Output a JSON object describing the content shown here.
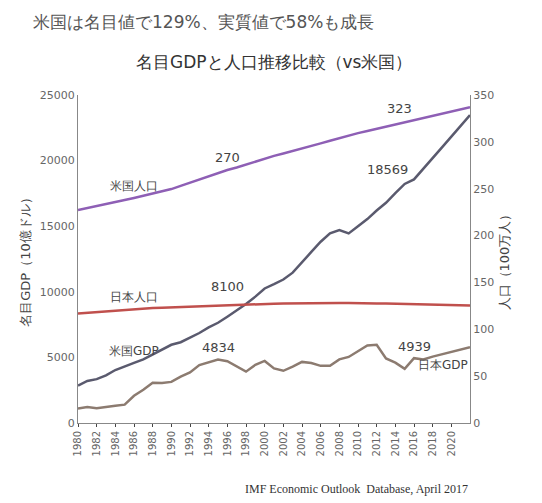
{
  "chart_data": {
    "type": "line",
    "title": "米国は名目値で129%、実質値で58%も成長",
    "subtitle": "名目GDPと人口推移比較（vs米国）",
    "source": "IMF Economic Outlook  Database, April 2017",
    "ylabel": "名目GDP（10億ドル）",
    "y2label": "人口（100万人）",
    "x": [
      1980,
      1981,
      1982,
      1983,
      1984,
      1985,
      1986,
      1987,
      1988,
      1989,
      1990,
      1991,
      1992,
      1993,
      1994,
      1995,
      1996,
      1997,
      1998,
      1999,
      2000,
      2001,
      2002,
      2003,
      2004,
      2005,
      2006,
      2007,
      2008,
      2009,
      2010,
      2011,
      2012,
      2013,
      2014,
      2015,
      2016,
      2017,
      2018,
      2019,
      2020,
      2021,
      2022
    ],
    "xlim": [
      1980,
      2022
    ],
    "xticks": [
      1980,
      1982,
      1984,
      1986,
      1988,
      1990,
      1992,
      1994,
      1996,
      1998,
      2000,
      2002,
      2004,
      2006,
      2008,
      2010,
      2012,
      2014,
      2016,
      2018,
      2020
    ],
    "ylim": [
      0,
      25000
    ],
    "yticks": [
      0,
      5000,
      10000,
      15000,
      20000,
      25000
    ],
    "y2lim": [
      0,
      350
    ],
    "y2ticks": [
      0,
      50,
      100,
      150,
      200,
      250,
      300,
      350
    ],
    "grid": false,
    "series": [
      {
        "name": "米国人口",
        "axis": "y2",
        "color": "#8e5fb5",
        "values": [
          227.2,
          229.5,
          231.7,
          233.8,
          235.8,
          237.9,
          240.1,
          242.3,
          244.5,
          246.8,
          249.6,
          253.0,
          256.5,
          259.9,
          263.1,
          266.3,
          270,
          272.6,
          275.9,
          279.0,
          282.2,
          285.0,
          287.6,
          290.1,
          292.8,
          295.5,
          298.4,
          301.2,
          304.1,
          306.8,
          309.3,
          311.6,
          313.9,
          316.1,
          318.4,
          320.7,
          323,
          325.3,
          327.6,
          330.0,
          332.3,
          334.7,
          337.0
        ]
      },
      {
        "name": "日本人口",
        "axis": "y2",
        "color": "#c0504d",
        "values": [
          116.8,
          117.6,
          118.4,
          119.2,
          120.0,
          120.8,
          121.5,
          122.0,
          122.6,
          123.1,
          123.5,
          123.9,
          124.4,
          124.8,
          125.1,
          125.4,
          125.8,
          126.1,
          126.4,
          126.7,
          126.9,
          127.3,
          127.5,
          127.7,
          127.8,
          127.8,
          127.9,
          128.0,
          128.1,
          128.0,
          128.1,
          127.8,
          127.6,
          127.4,
          127.2,
          127.1,
          126.9,
          126.7,
          126.5,
          126.2,
          125.9,
          125.6,
          125.3
        ]
      },
      {
        "name": "米国GDP",
        "axis": "y",
        "color": "#5a5a6e",
        "values": [
          2857,
          3207,
          3343,
          3634,
          4037,
          4339,
          4579,
          4855,
          5236,
          5641,
          5963,
          6158,
          6520,
          6859,
          7287,
          7640,
          8100,
          8578,
          9063,
          9631,
          10252,
          10582,
          10936,
          11458,
          12214,
          13037,
          13815,
          14452,
          14713,
          14449,
          14992,
          15543,
          16197,
          16785,
          17522,
          18219,
          18569,
          19362,
          20199,
          21011,
          21828,
          22636,
          23461
        ]
      },
      {
        "name": "日本GDP",
        "axis": "y",
        "color": "#8c7b70",
        "values": [
          1105,
          1218,
          1134,
          1243,
          1318,
          1398,
          2078,
          2532,
          3072,
          3054,
          3133,
          3537,
          3853,
          4415,
          4600,
          4834,
          4706,
          4324,
          3915,
          4433,
          4731,
          4160,
          3980,
          4303,
          4656,
          4572,
          4357,
          4356,
          4849,
          5035,
          5499,
          5909,
          5957,
          4920,
          4602,
          4124,
          4939,
          4841,
          5058,
          5234,
          5416,
          5598,
          5777
        ]
      }
    ],
    "annotations": [
      {
        "text": "270",
        "x": 1996,
        "y": 270,
        "axis": "y2"
      },
      {
        "text": "323",
        "x": 2016,
        "y": 323,
        "axis": "y2"
      },
      {
        "text": "8100",
        "x": 1996,
        "y": 8100,
        "axis": "y"
      },
      {
        "text": "18569",
        "x": 2016,
        "y": 18569,
        "axis": "y"
      },
      {
        "text": "4834",
        "x": 1995,
        "y": 4834,
        "axis": "y"
      },
      {
        "text": "4939",
        "x": 2016,
        "y": 4939,
        "axis": "y"
      }
    ]
  }
}
